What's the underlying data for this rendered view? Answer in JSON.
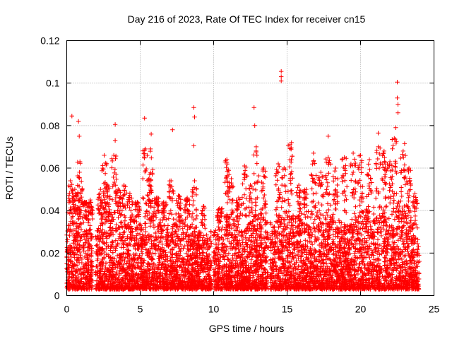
{
  "chart_data": {
    "type": "scatter",
    "title": "Day 216 of 2023, Rate Of TEC Index for receiver cn15",
    "xlabel": "GPS time / hours",
    "ylabel": "ROTI / TECUs",
    "xlim": [
      0,
      25
    ],
    "ylim": [
      0,
      0.12
    ],
    "x_ticks": [
      "0",
      "5",
      "10",
      "15",
      "20",
      "25"
    ],
    "y_ticks": [
      "0",
      "0.02",
      "0.04",
      "0.06",
      "0.08",
      "0.1",
      "0.12"
    ],
    "grid": true,
    "marker": "+",
    "color": "#ff0000",
    "outliers": [
      {
        "x": 0.35,
        "y": 0.0845
      },
      {
        "x": 0.8,
        "y": 0.082
      },
      {
        "x": 0.85,
        "y": 0.075
      },
      {
        "x": 3.3,
        "y": 0.0805
      },
      {
        "x": 3.3,
        "y": 0.073
      },
      {
        "x": 5.3,
        "y": 0.0835
      },
      {
        "x": 5.75,
        "y": 0.076
      },
      {
        "x": 7.2,
        "y": 0.078
      },
      {
        "x": 8.65,
        "y": 0.0885
      },
      {
        "x": 8.7,
        "y": 0.084
      },
      {
        "x": 8.65,
        "y": 0.0705
      },
      {
        "x": 12.75,
        "y": 0.0885
      },
      {
        "x": 12.8,
        "y": 0.08
      },
      {
        "x": 14.6,
        "y": 0.1055
      },
      {
        "x": 14.6,
        "y": 0.103
      },
      {
        "x": 14.6,
        "y": 0.101
      },
      {
        "x": 15.3,
        "y": 0.072
      },
      {
        "x": 17.8,
        "y": 0.075
      },
      {
        "x": 21.2,
        "y": 0.0765
      },
      {
        "x": 22.5,
        "y": 0.1005
      },
      {
        "x": 22.5,
        "y": 0.093
      },
      {
        "x": 22.55,
        "y": 0.09
      },
      {
        "x": 22.55,
        "y": 0.086
      },
      {
        "x": 22.4,
        "y": 0.079
      },
      {
        "x": 23.0,
        "y": 0.0715
      }
    ],
    "bulk": {
      "x_range": [
        0,
        24
      ],
      "y_floor": 0.003,
      "gaps": [
        [
          1.75,
          1.95
        ],
        [
          9.85,
          10.0
        ],
        [
          13.75,
          13.85
        ]
      ],
      "envelope": [
        {
          "x": 0,
          "y": 0.033
        },
        {
          "x": 1,
          "y": 0.045
        },
        {
          "x": 2,
          "y": 0.03
        },
        {
          "x": 3,
          "y": 0.04
        },
        {
          "x": 4,
          "y": 0.038
        },
        {
          "x": 5,
          "y": 0.034
        },
        {
          "x": 6,
          "y": 0.04
        },
        {
          "x": 7,
          "y": 0.033
        },
        {
          "x": 8,
          "y": 0.036
        },
        {
          "x": 9,
          "y": 0.03
        },
        {
          "x": 10,
          "y": 0.031
        },
        {
          "x": 11,
          "y": 0.04
        },
        {
          "x": 12,
          "y": 0.032
        },
        {
          "x": 13,
          "y": 0.04
        },
        {
          "x": 14,
          "y": 0.034
        },
        {
          "x": 15,
          "y": 0.04
        },
        {
          "x": 16,
          "y": 0.036
        },
        {
          "x": 17,
          "y": 0.04
        },
        {
          "x": 18,
          "y": 0.038
        },
        {
          "x": 19,
          "y": 0.034
        },
        {
          "x": 20,
          "y": 0.04
        },
        {
          "x": 21,
          "y": 0.042
        },
        {
          "x": 22,
          "y": 0.044
        },
        {
          "x": 23,
          "y": 0.045
        },
        {
          "x": 24,
          "y": 0.032
        }
      ],
      "spikes": [
        {
          "x": 0.25,
          "y": 0.054
        },
        {
          "x": 0.55,
          "y": 0.05
        },
        {
          "x": 0.9,
          "y": 0.063
        },
        {
          "x": 1.2,
          "y": 0.044
        },
        {
          "x": 1.6,
          "y": 0.045
        },
        {
          "x": 2.3,
          "y": 0.05
        },
        {
          "x": 2.55,
          "y": 0.066
        },
        {
          "x": 2.8,
          "y": 0.052
        },
        {
          "x": 3.2,
          "y": 0.066
        },
        {
          "x": 3.5,
          "y": 0.05
        },
        {
          "x": 3.9,
          "y": 0.052
        },
        {
          "x": 4.3,
          "y": 0.048
        },
        {
          "x": 4.8,
          "y": 0.044
        },
        {
          "x": 5.35,
          "y": 0.069
        },
        {
          "x": 5.7,
          "y": 0.069
        },
        {
          "x": 5.6,
          "y": 0.052
        },
        {
          "x": 6.1,
          "y": 0.046
        },
        {
          "x": 6.6,
          "y": 0.044
        },
        {
          "x": 7.1,
          "y": 0.054
        },
        {
          "x": 7.6,
          "y": 0.047
        },
        {
          "x": 8.2,
          "y": 0.046
        },
        {
          "x": 8.7,
          "y": 0.054
        },
        {
          "x": 9.3,
          "y": 0.042
        },
        {
          "x": 10.4,
          "y": 0.041
        },
        {
          "x": 10.9,
          "y": 0.064
        },
        {
          "x": 11.2,
          "y": 0.055
        },
        {
          "x": 11.7,
          "y": 0.046
        },
        {
          "x": 12.1,
          "y": 0.061
        },
        {
          "x": 12.5,
          "y": 0.052
        },
        {
          "x": 12.9,
          "y": 0.07
        },
        {
          "x": 13.4,
          "y": 0.06
        },
        {
          "x": 14.4,
          "y": 0.062
        },
        {
          "x": 14.8,
          "y": 0.06
        },
        {
          "x": 15.2,
          "y": 0.071
        },
        {
          "x": 15.8,
          "y": 0.052
        },
        {
          "x": 16.3,
          "y": 0.05
        },
        {
          "x": 16.8,
          "y": 0.067
        },
        {
          "x": 17.3,
          "y": 0.058
        },
        {
          "x": 17.8,
          "y": 0.065
        },
        {
          "x": 18.3,
          "y": 0.06
        },
        {
          "x": 18.9,
          "y": 0.065
        },
        {
          "x": 19.5,
          "y": 0.067
        },
        {
          "x": 20.0,
          "y": 0.066
        },
        {
          "x": 20.6,
          "y": 0.064
        },
        {
          "x": 21.2,
          "y": 0.07
        },
        {
          "x": 21.6,
          "y": 0.068
        },
        {
          "x": 22.0,
          "y": 0.063
        },
        {
          "x": 22.3,
          "y": 0.074
        },
        {
          "x": 22.9,
          "y": 0.068
        },
        {
          "x": 23.3,
          "y": 0.06
        },
        {
          "x": 23.7,
          "y": 0.048
        }
      ],
      "density_per_hour": 260
    }
  }
}
